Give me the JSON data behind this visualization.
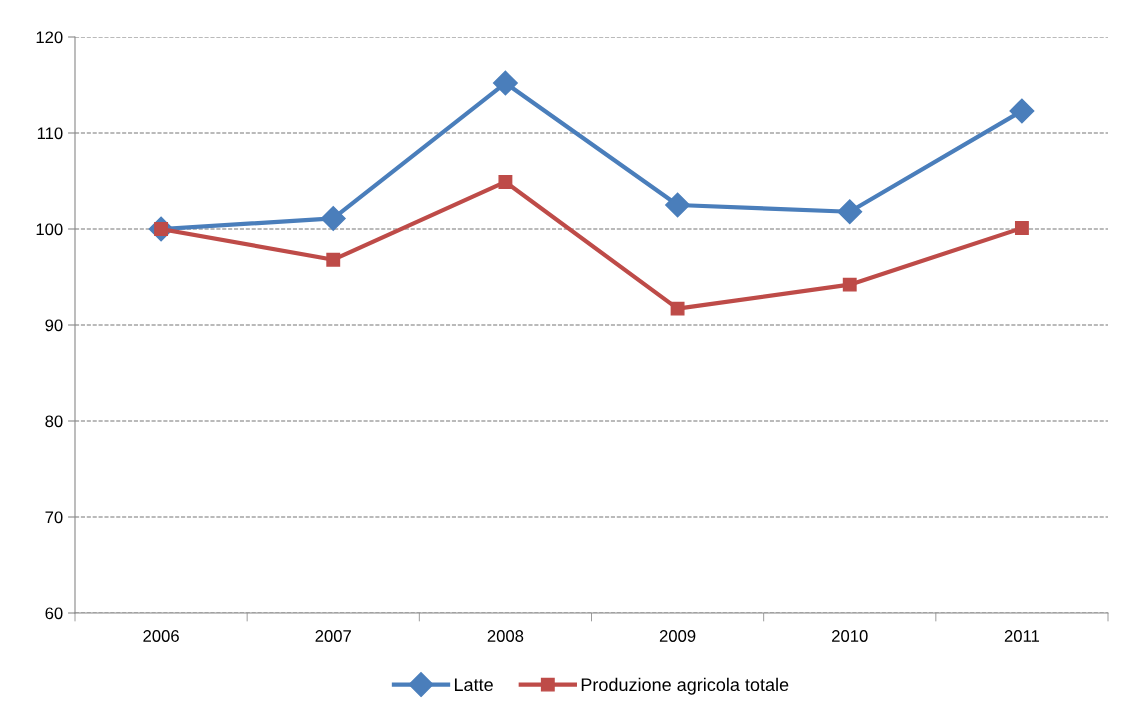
{
  "chart_data": {
    "type": "line",
    "categories": [
      "2006",
      "2007",
      "2008",
      "2009",
      "2010",
      "2011"
    ],
    "series": [
      {
        "name": "Latte",
        "color": "#4a7ebb",
        "marker": "diamond",
        "values": [
          100,
          101.1,
          115.2,
          102.5,
          101.8,
          112.3
        ]
      },
      {
        "name": "Produzione agricola totale",
        "color": "#be4b48",
        "marker": "square",
        "values": [
          100,
          96.8,
          104.9,
          91.7,
          94.2,
          100.1
        ]
      }
    ],
    "ylim": [
      60,
      120
    ],
    "yticks": [
      60,
      70,
      80,
      90,
      100,
      110,
      120
    ],
    "grid": "y",
    "legend": "bottom",
    "line_style": "solid"
  }
}
